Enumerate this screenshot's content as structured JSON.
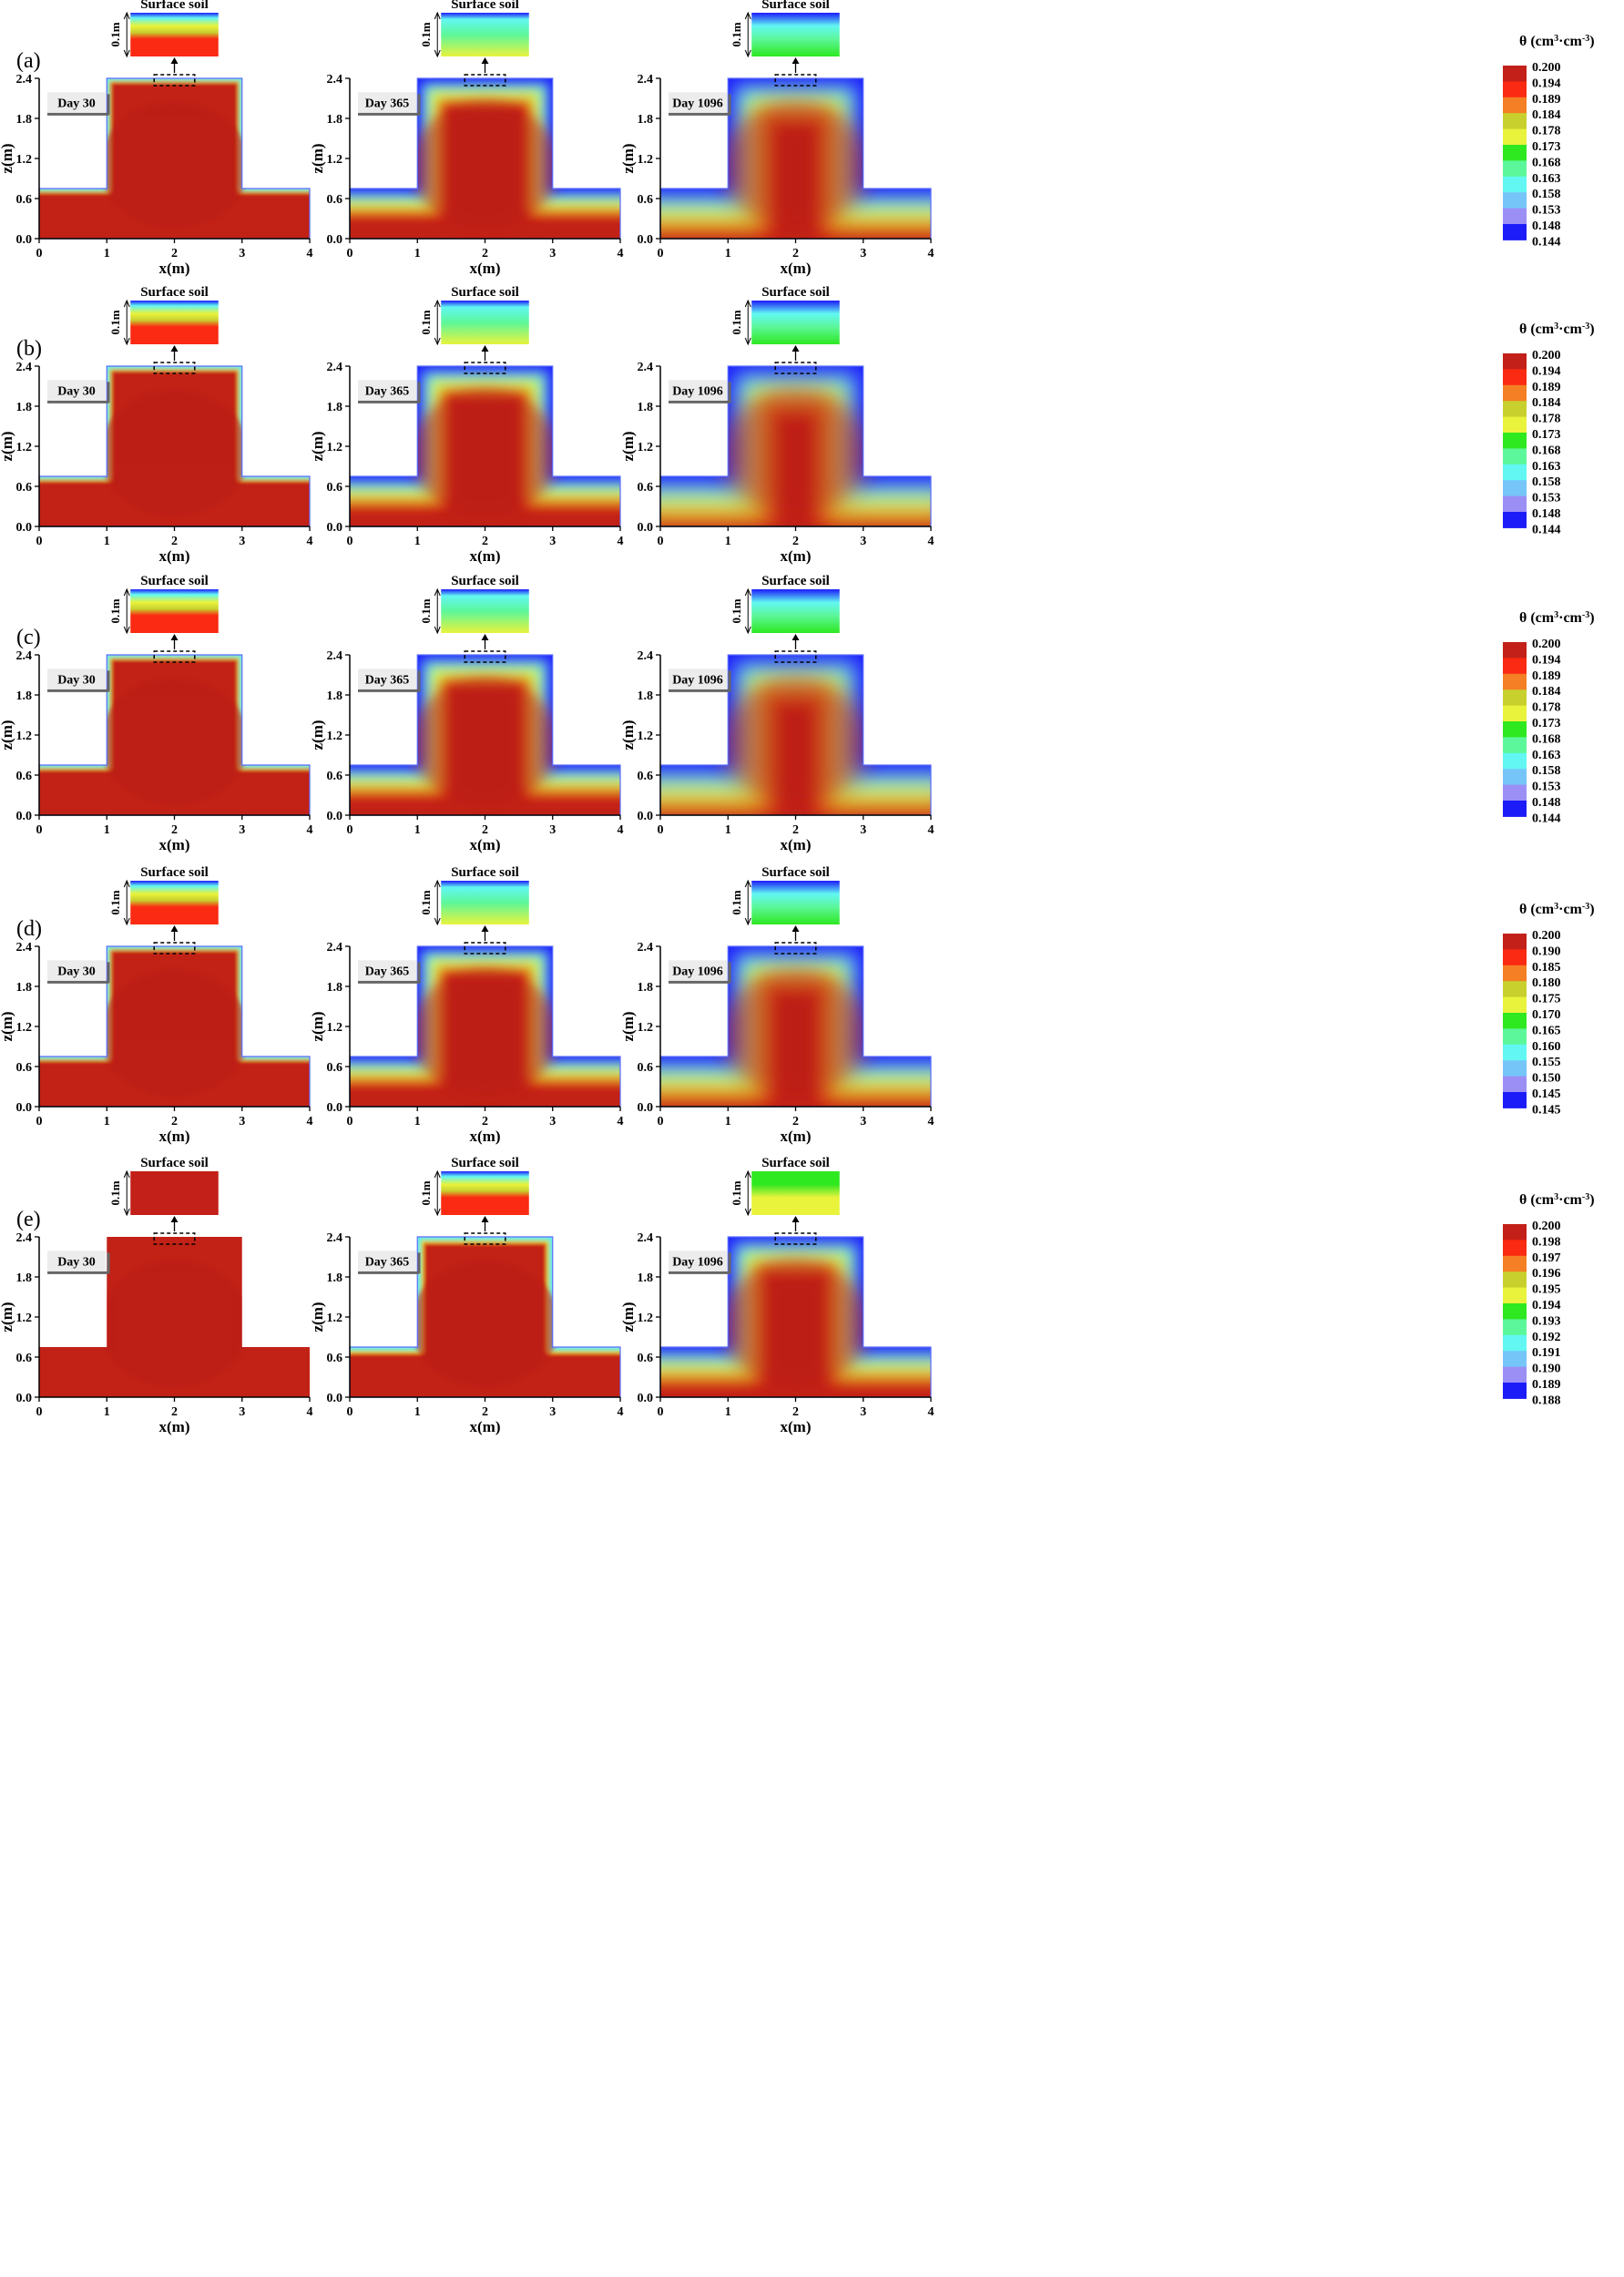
{
  "surface_label": "Surface soil",
  "depth_label": "0.1m",
  "x_label": "x(m)",
  "z_label": "z(m)",
  "x_ticks": [
    "0",
    "1",
    "2",
    "3",
    "4"
  ],
  "z_ticks": [
    "0.0",
    "0.6",
    "1.2",
    "1.8",
    "2.4"
  ],
  "day_labels": [
    "Day 30",
    "Day 365",
    "Day 1096"
  ],
  "legend_title_main": "θ (cm",
  "legend_title_sup1": "3",
  "legend_title_mid": "·cm",
  "legend_title_sup2": "-3",
  "legend_title_end": ")",
  "colors": [
    "#c22018",
    "#fb2a12",
    "#f47f24",
    "#c8d02e",
    "#e9f33c",
    "#2ee820",
    "#5cf79a",
    "#62f7f3",
    "#76c5f8",
    "#9b8ff5",
    "#1c1cf9"
  ],
  "chart_data": {
    "type": "heatmap",
    "description_axes": {
      "x": [
        0,
        4
      ],
      "z": [
        0,
        2.4
      ]
    },
    "rows": [
      {
        "panel": "(a)",
        "legend": [
          "0.200",
          "0.194",
          "0.189",
          "0.184",
          "0.178",
          "0.173",
          "0.168",
          "0.163",
          "0.158",
          "0.153",
          "0.148",
          "0.144"
        ],
        "dryness": [
          0.05,
          0.45,
          0.75
        ]
      },
      {
        "panel": "(b)",
        "legend": [
          "0.200",
          "0.194",
          "0.189",
          "0.184",
          "0.178",
          "0.173",
          "0.168",
          "0.163",
          "0.158",
          "0.153",
          "0.148",
          "0.144"
        ],
        "dryness": [
          0.06,
          0.5,
          0.8
        ]
      },
      {
        "panel": "(c)",
        "legend": [
          "0.200",
          "0.194",
          "0.189",
          "0.184",
          "0.178",
          "0.173",
          "0.168",
          "0.163",
          "0.158",
          "0.153",
          "0.148",
          "0.144"
        ],
        "dryness": [
          0.06,
          0.5,
          0.8
        ]
      },
      {
        "panel": "(d)",
        "legend": [
          "0.200",
          "0.190",
          "0.185",
          "0.180",
          "0.175",
          "0.170",
          "0.165",
          "0.160",
          "0.155",
          "0.150",
          "0.145",
          "0.145"
        ],
        "dryness": [
          0.05,
          0.45,
          0.75
        ]
      },
      {
        "panel": "(e)",
        "legend": [
          "0.200",
          "0.198",
          "0.197",
          "0.196",
          "0.195",
          "0.194",
          "0.193",
          "0.192",
          "0.191",
          "0.190",
          "0.189",
          "0.188"
        ],
        "dryness": [
          0.0,
          0.1,
          0.6
        ]
      }
    ]
  }
}
